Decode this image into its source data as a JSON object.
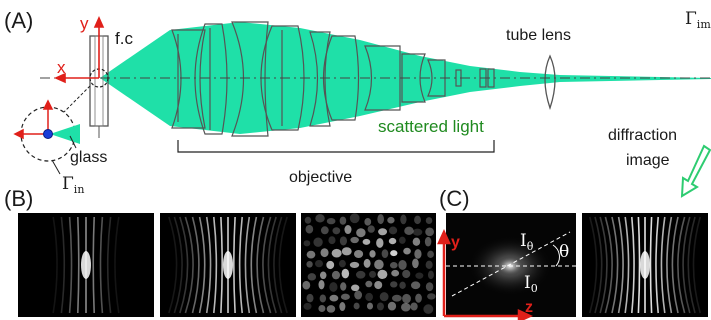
{
  "panel_a": {
    "label": "(A)",
    "axis_x": "x",
    "axis_y": "y",
    "focal_label": "f.c",
    "gamma_in": "Γ",
    "gamma_in_sub": "in",
    "gamma_im": "Γ",
    "gamma_im_sub": "im",
    "glass_label": "glass",
    "tube_lens_label": "tube lens",
    "scattered_light_label": "scattered light",
    "objective_label": "objective",
    "diffraction_line1": "diffraction",
    "diffraction_line2": "image"
  },
  "panel_b": {
    "label": "(B)"
  },
  "panel_c": {
    "label": "(C)",
    "axis_y": "y",
    "axis_z": "z",
    "i_theta": "I",
    "i_theta_sub": "θ",
    "i_zero": "I",
    "i_zero_sub": "0",
    "theta": "θ"
  },
  "colors": {
    "beam": "#1fe0a8",
    "axis_red": "#e0201a",
    "text_green": "#1f8a1f",
    "arrow_green": "#2ecc71",
    "blue_dot": "#1a3cd8"
  }
}
